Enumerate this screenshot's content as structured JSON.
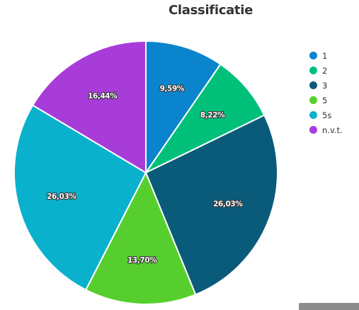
{
  "chart_data": {
    "type": "pie",
    "title": "Classificatie",
    "categories": [
      "1",
      "2",
      "3",
      "5",
      "5s",
      "n.v.t."
    ],
    "values": [
      9.59,
      8.22,
      26.03,
      13.7,
      26.03,
      16.44
    ],
    "value_labels": [
      "9,59%",
      "8,22%",
      "26,03%",
      "13,70%",
      "26,03%",
      "16,44%"
    ],
    "colors": [
      "#0a84cc",
      "#00c07a",
      "#0a5a7a",
      "#56cf2e",
      "#0ab1cc",
      "#a83cd8"
    ],
    "legend_position": "right"
  }
}
